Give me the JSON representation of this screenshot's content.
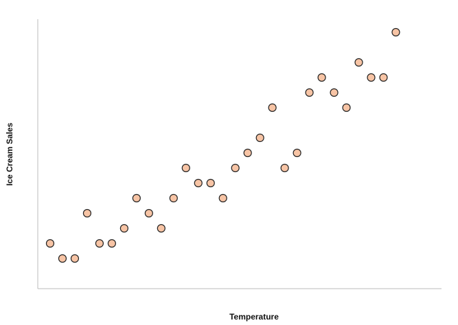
{
  "chart_data": {
    "type": "scatter",
    "x_label": "Temperature",
    "y_label": "Ice Cream Sales",
    "x": [
      1,
      2,
      3,
      4,
      5,
      6,
      7,
      8,
      9,
      10,
      11,
      12,
      13,
      14,
      15,
      16,
      17,
      18,
      19,
      20,
      21,
      22,
      23,
      24,
      25,
      26,
      27,
      28,
      29
    ],
    "y": [
      3,
      2,
      2,
      5,
      3,
      3,
      4,
      6,
      5,
      4,
      6,
      8,
      7,
      7,
      6,
      8,
      9,
      10,
      12,
      8,
      9,
      13,
      14,
      13,
      12,
      15,
      14,
      14,
      17
    ],
    "xlim": [
      0,
      32.7
    ],
    "ylim": [
      0,
      18
    ],
    "color": "#f7c4a5",
    "edge_color": "#222222"
  }
}
